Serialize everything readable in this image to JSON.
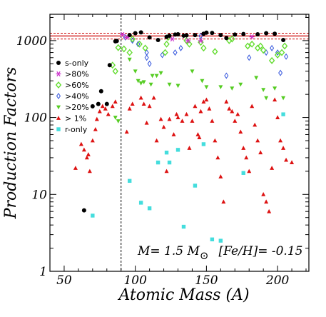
{
  "chart_data": {
    "type": "scatter",
    "xlabel": "Atomic Mass (A)",
    "ylabel": "Production Factors",
    "xlim": [
      40,
      222
    ],
    "ylim": [
      1,
      2200
    ],
    "y_scale": "log",
    "x_ticks": [
      50,
      100,
      150,
      200
    ],
    "y_ticks": [
      {
        "value": 1,
        "label": "1"
      },
      {
        "value": 10,
        "label": "10"
      },
      {
        "value": 100,
        "label": "100"
      },
      {
        "value": 1000,
        "label": "1000"
      }
    ],
    "grid": false,
    "legend_position": "top-left",
    "reference_lines": {
      "horizontal_solid": 1150,
      "horizontal_dashed": [
        1050,
        1250
      ],
      "vertical_dashed_x": 90
    },
    "annotation": {
      "mass": "M= 1.5 M",
      "sun_symbol": "⊙",
      "metallicity": "[Fe/H]= -0.15"
    },
    "series": [
      {
        "name": "s-only",
        "marker": "circle",
        "color": "#000000",
        "points": [
          [
            64,
            6.2
          ],
          [
            70,
            140
          ],
          [
            74,
            150
          ],
          [
            76,
            220
          ],
          [
            80,
            150
          ],
          [
            82,
            480
          ],
          [
            86,
            980
          ],
          [
            87,
            990
          ],
          [
            96,
            1180
          ],
          [
            100,
            1250
          ],
          [
            104,
            1280
          ],
          [
            110,
            1100
          ],
          [
            116,
            1020
          ],
          [
            122,
            1120
          ],
          [
            124,
            1160
          ],
          [
            128,
            1200
          ],
          [
            130,
            1210
          ],
          [
            134,
            1160
          ],
          [
            136,
            1170
          ],
          [
            142,
            1180
          ],
          [
            148,
            1230
          ],
          [
            150,
            1270
          ],
          [
            154,
            1260
          ],
          [
            160,
            1180
          ],
          [
            164,
            1080
          ],
          [
            170,
            1200
          ],
          [
            176,
            1220
          ],
          [
            186,
            1210
          ],
          [
            192,
            1250
          ],
          [
            198,
            1230
          ],
          [
            204,
            1020
          ]
        ]
      },
      {
        "name": ">80%",
        "marker": "star",
        "color": "#cc33cc",
        "points": [
          [
            91,
            1200
          ],
          [
            94,
            1100
          ],
          [
            126,
            1050
          ],
          [
            137,
            1000
          ],
          [
            146,
            1000
          ],
          [
            182,
            1120
          ]
        ]
      },
      {
        "name": ">60%",
        "marker": "diamond",
        "color": "#66dd33",
        "points": [
          [
            84,
            480
          ],
          [
            86,
            400
          ],
          [
            88,
            810
          ],
          [
            92,
            780
          ],
          [
            96,
            700
          ],
          [
            98,
            1050
          ],
          [
            103,
            900
          ],
          [
            107,
            800
          ],
          [
            121,
            700
          ],
          [
            122,
            900
          ],
          [
            123,
            1100
          ],
          [
            136,
            1000
          ],
          [
            138,
            900
          ],
          [
            146,
            950
          ],
          [
            148,
            800
          ],
          [
            156,
            720
          ],
          [
            166,
            1000
          ],
          [
            168,
            1050
          ],
          [
            179,
            850
          ],
          [
            182,
            900
          ],
          [
            186,
            800
          ],
          [
            188,
            850
          ],
          [
            190,
            750
          ],
          [
            196,
            550
          ],
          [
            200,
            650
          ],
          [
            203,
            700
          ],
          [
            205,
            850
          ]
        ]
      },
      {
        "name": ">40%",
        "marker": "diamond-open",
        "color": "#3355dd",
        "points": [
          [
            93,
            1100
          ],
          [
            98,
            1000
          ],
          [
            102,
            900
          ],
          [
            108,
            700
          ],
          [
            108,
            600
          ],
          [
            110,
            500
          ],
          [
            119,
            650
          ],
          [
            128,
            700
          ],
          [
            132,
            800
          ],
          [
            146,
            1150
          ],
          [
            164,
            350
          ],
          [
            180,
            600
          ],
          [
            192,
            700
          ],
          [
            196,
            800
          ],
          [
            200,
            700
          ],
          [
            202,
            380
          ],
          [
            206,
            620
          ]
        ]
      },
      {
        "name": ">20%",
        "marker": "triangle-down",
        "color": "#55cc22",
        "points": [
          [
            86,
            100
          ],
          [
            88,
            90
          ],
          [
            96,
            570
          ],
          [
            100,
            400
          ],
          [
            102,
            300
          ],
          [
            104,
            280
          ],
          [
            106,
            290
          ],
          [
            111,
            270
          ],
          [
            112,
            350
          ],
          [
            115,
            350
          ],
          [
            118,
            380
          ],
          [
            124,
            270
          ],
          [
            130,
            260
          ],
          [
            140,
            400
          ],
          [
            147,
            300
          ],
          [
            150,
            250
          ],
          [
            160,
            250
          ],
          [
            168,
            240
          ],
          [
            174,
            270
          ],
          [
            185,
            330
          ],
          [
            190,
            230
          ],
          [
            192,
            180
          ],
          [
            198,
            240
          ],
          [
            204,
            180
          ]
        ]
      },
      {
        "name": "> 1%",
        "marker": "triangle",
        "color": "#dd1111",
        "points": [
          [
            58,
            22
          ],
          [
            62,
            45
          ],
          [
            64,
            38
          ],
          [
            66,
            30
          ],
          [
            67,
            33
          ],
          [
            68,
            20
          ],
          [
            70,
            50
          ],
          [
            72,
            70
          ],
          [
            73,
            95
          ],
          [
            75,
            120
          ],
          [
            77,
            140
          ],
          [
            79,
            130
          ],
          [
            81,
            110
          ],
          [
            84,
            140
          ],
          [
            86,
            160
          ],
          [
            94,
            65
          ],
          [
            96,
            130
          ],
          [
            98,
            150
          ],
          [
            104,
            180
          ],
          [
            106,
            150
          ],
          [
            108,
            85
          ],
          [
            110,
            140
          ],
          [
            113,
            180
          ],
          [
            115,
            50
          ],
          [
            118,
            95
          ],
          [
            120,
            75
          ],
          [
            122,
            20
          ],
          [
            124,
            95
          ],
          [
            127,
            60
          ],
          [
            129,
            110
          ],
          [
            130,
            100
          ],
          [
            133,
            90
          ],
          [
            136,
            110
          ],
          [
            138,
            40
          ],
          [
            140,
            90
          ],
          [
            142,
            140
          ],
          [
            144,
            60
          ],
          [
            145,
            55
          ],
          [
            146,
            120
          ],
          [
            148,
            160
          ],
          [
            150,
            170
          ],
          [
            152,
            130
          ],
          [
            154,
            90
          ],
          [
            156,
            50
          ],
          [
            158,
            30
          ],
          [
            160,
            17
          ],
          [
            162,
            8
          ],
          [
            164,
            160
          ],
          [
            166,
            130
          ],
          [
            168,
            120
          ],
          [
            170,
            90
          ],
          [
            172,
            110
          ],
          [
            174,
            65
          ],
          [
            176,
            40
          ],
          [
            178,
            30
          ],
          [
            180,
            20
          ],
          [
            182,
            140
          ],
          [
            184,
            80
          ],
          [
            186,
            50
          ],
          [
            188,
            35
          ],
          [
            190,
            10
          ],
          [
            192,
            8
          ],
          [
            194,
            6
          ],
          [
            196,
            22
          ],
          [
            198,
            170
          ],
          [
            200,
            100
          ],
          [
            202,
            50
          ],
          [
            204,
            40
          ],
          [
            206,
            28
          ],
          [
            210,
            26
          ]
        ]
      },
      {
        "name": "r-only",
        "marker": "square",
        "color": "#44dddd",
        "points": [
          [
            70,
            5.3
          ],
          [
            96,
            15
          ],
          [
            104,
            7.8
          ],
          [
            110,
            6.6
          ],
          [
            116,
            26
          ],
          [
            122,
            35
          ],
          [
            124,
            26
          ],
          [
            130,
            38
          ],
          [
            134,
            3.8
          ],
          [
            142,
            13
          ],
          [
            148,
            45
          ],
          [
            154,
            2.6
          ],
          [
            160,
            2.5
          ],
          [
            176,
            19
          ],
          [
            204,
            110
          ]
        ]
      }
    ]
  }
}
